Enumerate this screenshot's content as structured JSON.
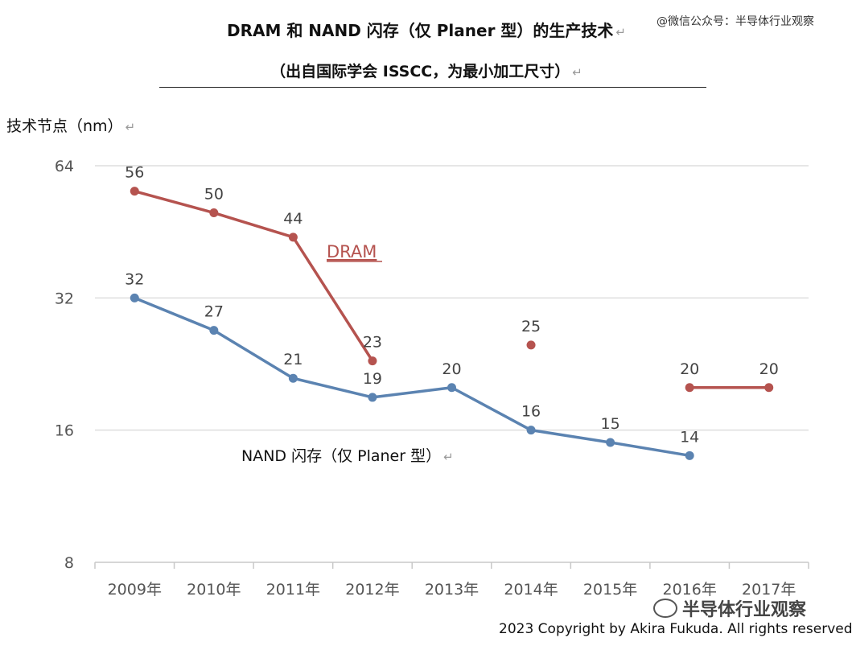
{
  "header": {
    "title": "DRAM 和 NAND 闪存（仅 Planer 型）的生产技术",
    "subtitle": "（出自国际学会 ISSCC，为最小加工尺寸）",
    "return_mark": "↵",
    "watermark": "@微信公众号：半导体行业观察"
  },
  "footer": {
    "brand": "半导体行业观察",
    "copyright": "2023 Copyright by Akira Fukuda. All rights reserved."
  },
  "chart_data": {
    "type": "line",
    "title": "DRAM 和 NAND 闪存（仅 Planer 型）的生产技术",
    "subtitle": "（出自国际学会 ISSCC，为最小加工尺寸）",
    "ylabel": "技术节点（nm）",
    "xlabel": "",
    "categories": [
      "2009年",
      "2010年",
      "2011年",
      "2012年",
      "2013年",
      "2014年",
      "2015年",
      "2016年",
      "2017年"
    ],
    "yscale": "log2",
    "yticks": [
      8,
      16,
      32,
      64
    ],
    "ylim": [
      8,
      64
    ],
    "grid": "horizontal",
    "colors": {
      "DRAM": "#b5534f",
      "NAND": "#5b83b1"
    },
    "series": [
      {
        "name": "DRAM",
        "segments": [
          {
            "x": [
              "2009年",
              "2010年",
              "2011年",
              "2012年"
            ],
            "values": [
              56,
              50,
              44,
              23
            ]
          },
          {
            "x": [
              "2014年"
            ],
            "values": [
              25
            ]
          },
          {
            "x": [
              "2016年",
              "2017年"
            ],
            "values": [
              20,
              20
            ]
          }
        ]
      },
      {
        "name": "NAND 闪存（仅 Planer 型）",
        "segments": [
          {
            "x": [
              "2009年",
              "2010年",
              "2011年",
              "2012年",
              "2013年",
              "2014年",
              "2015年",
              "2016年"
            ],
            "values": [
              32,
              27,
              21,
              19,
              20,
              16,
              15,
              14
            ]
          }
        ]
      }
    ]
  }
}
